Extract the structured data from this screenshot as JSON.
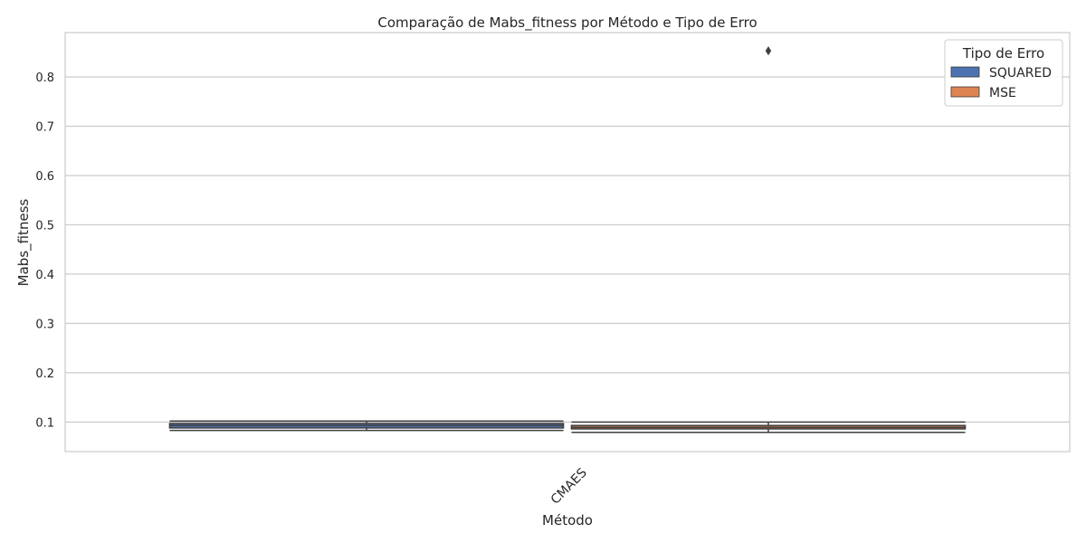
{
  "chart_data": {
    "type": "box",
    "title": "Comparação de Mabs_fitness por Método e Tipo de Erro",
    "xlabel": "Método",
    "ylabel": "Mabs_fitness",
    "categories": [
      "CMAES"
    ],
    "ylim": [
      0.04,
      0.89
    ],
    "yticks": [
      0.1,
      0.2,
      0.3,
      0.4,
      0.5,
      0.6,
      0.7,
      0.8
    ],
    "ytick_labels": [
      "0.1",
      "0.2",
      "0.3",
      "0.4",
      "0.5",
      "0.6",
      "0.7",
      "0.8"
    ],
    "grid": true,
    "x_tick_rotation": 45,
    "legend": {
      "title": "Tipo de Erro",
      "position": "top-right"
    },
    "series": [
      {
        "name": "SQUARED",
        "color": "#4c72b0",
        "boxes": [
          {
            "category": "CMAES",
            "whisker_low": 0.083,
            "q1": 0.088,
            "median": 0.093,
            "q3": 0.097,
            "whisker_high": 0.102,
            "outliers": []
          }
        ]
      },
      {
        "name": "MSE",
        "color": "#dd8452",
        "boxes": [
          {
            "category": "CMAES",
            "whisker_low": 0.079,
            "q1": 0.086,
            "median": 0.089,
            "q3": 0.093,
            "whisker_high": 0.1,
            "outliers": [
              0.853
            ]
          }
        ]
      }
    ]
  }
}
